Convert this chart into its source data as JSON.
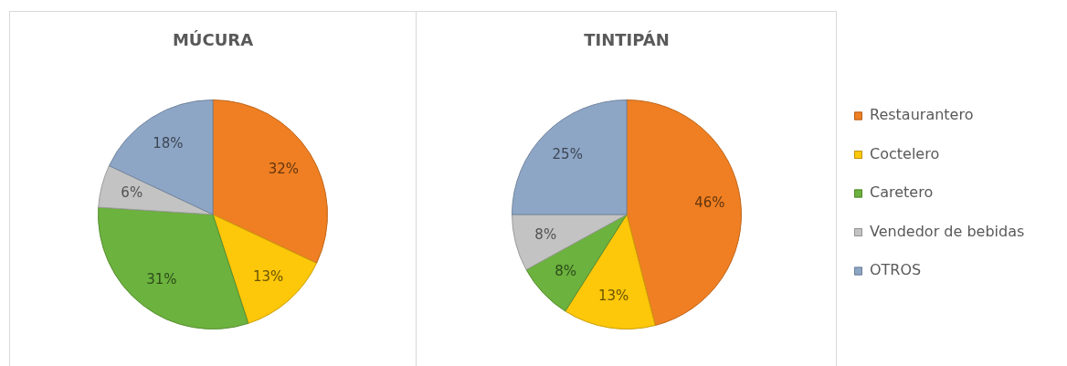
{
  "chart_data": {
    "type": "pie",
    "categories": [
      "Restaurantero",
      "Coctelero",
      "Caretero",
      "Vendedor de bebidas",
      "OTROS"
    ],
    "colors": [
      "#ef7f22",
      "#fdc70a",
      "#6cb23e",
      "#c3c3c3",
      "#8ea6c6"
    ],
    "legend": "right",
    "series": [
      {
        "name": "MÚCURA",
        "values": [
          32,
          13,
          31,
          6,
          18
        ],
        "value_labels": [
          "32%",
          "13%",
          "31%",
          "6%",
          "18%"
        ]
      },
      {
        "name": "TINTIPÁN",
        "values": [
          46,
          13,
          8,
          8,
          25
        ],
        "value_labels": [
          "46%",
          "13%",
          "8%",
          "8%",
          "25%"
        ]
      }
    ]
  }
}
